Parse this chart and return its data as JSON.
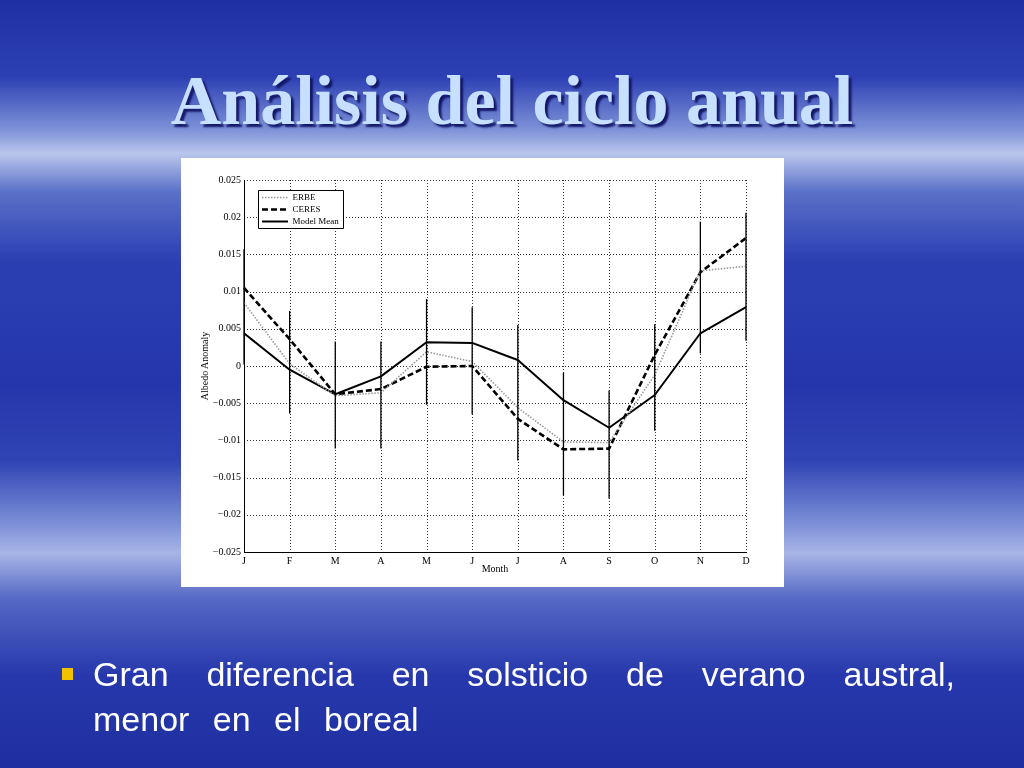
{
  "chart_data": {
    "type": "line",
    "title": "Análisis del ciclo anual",
    "xlabel": "Month",
    "ylabel": "Albedo Anomaly",
    "categories": [
      "J",
      "F",
      "M",
      "A",
      "M",
      "J",
      "J",
      "A",
      "S",
      "O",
      "N",
      "D"
    ],
    "series": [
      {
        "name": "ERBE",
        "color": "#9a9a9a",
        "line_style": "dotted",
        "values": [
          0.0085,
          0.0003,
          -0.004,
          -0.0036,
          0.0019,
          0.0006,
          -0.0056,
          -0.0102,
          -0.0103,
          -0.0012,
          0.0128,
          0.0134
        ]
      },
      {
        "name": "CERES",
        "color": "#000000",
        "line_style": "dashed",
        "values": [
          0.0105,
          0.0036,
          -0.0038,
          -0.0031,
          -0.0001,
          0,
          -0.0071,
          -0.0112,
          -0.0111,
          0.0015,
          0.0126,
          0.0172
        ]
      },
      {
        "name": "Model Mean",
        "color": "#000000",
        "line_style": "solid",
        "values": [
          0.0044,
          -0.0005,
          -0.0038,
          -0.0014,
          0.0032,
          0.0031,
          0.0008,
          -0.0046,
          -0.0083,
          -0.0039,
          0.0044,
          0.0079
        ],
        "errors": [
          [
            0.0002,
            0.0157
          ],
          [
            -0.0064,
            0.0074
          ],
          [
            -0.0111,
            0.0033
          ],
          [
            -0.0111,
            0.0033
          ],
          [
            -0.0052,
            0.009
          ],
          [
            -0.0065,
            0.0079
          ],
          [
            -0.0127,
            0.0055
          ],
          [
            -0.0174,
            -0.0009
          ],
          [
            -0.0178,
            -0.0033
          ],
          [
            -0.0087,
            0.0056
          ],
          [
            0.0017,
            0.0194
          ],
          [
            0.0034,
            0.0206
          ]
        ]
      }
    ],
    "ylim": [
      -0.025,
      0.025
    ],
    "yticks": [
      -0.025,
      -0.02,
      -0.015,
      -0.01,
      -0.005,
      0,
      0.005,
      0.01,
      0.015,
      0.02,
      0.025
    ],
    "grid": true,
    "legend": "top left",
    "annotations": [
      "Gran diferencia en solsticio de verano austral, menor en el boreal"
    ]
  }
}
